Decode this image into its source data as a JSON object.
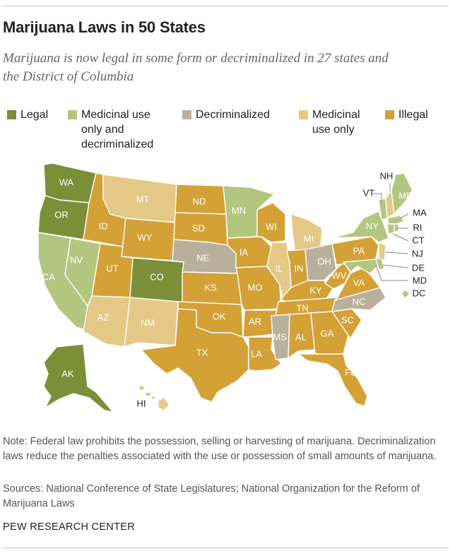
{
  "title": "Marijuana Laws in 50 States",
  "subtitle": "Marijuana is now legal in some form or decriminalized in 27 states and the District of Columbia",
  "legend": [
    {
      "label": "Legal",
      "color": "#7c8f38"
    },
    {
      "label": "Medicinal use\nonly and\ndecriminalized",
      "color": "#b3c67f"
    },
    {
      "label": "Decriminalized",
      "color": "#b9b09b"
    },
    {
      "label": "Medicinal\nuse only",
      "color": "#e4c886"
    },
    {
      "label": "Illegal",
      "color": "#d4a137"
    }
  ],
  "categories": {
    "legal": "#7c8f38",
    "medicinal_decrim": "#b3c67f",
    "decriminalized": "#b9b09b",
    "medicinal": "#e4c886",
    "illegal": "#d4a137"
  },
  "states": {
    "WA": "legal",
    "OR": "legal",
    "CO": "legal",
    "AK": "legal",
    "CA": "medicinal_decrim",
    "NV": "medicinal_decrim",
    "MN": "medicinal_decrim",
    "VT": "medicinal_decrim",
    "ME": "medicinal_decrim",
    "MA": "medicinal_decrim",
    "RI": "medicinal_decrim",
    "CT": "medicinal_decrim",
    "NY": "medicinal_decrim",
    "DE": "medicinal_decrim",
    "MD": "medicinal_decrim",
    "DC": "medicinal_decrim",
    "NE": "decriminalized",
    "MS": "decriminalized",
    "NC": "decriminalized",
    "OH": "decriminalized",
    "MT": "medicinal",
    "AZ": "medicinal",
    "NM": "medicinal",
    "MI": "medicinal",
    "IL": "medicinal",
    "NH": "medicinal",
    "NJ": "medicinal",
    "HI": "medicinal",
    "ID": "illegal",
    "UT": "illegal",
    "WY": "illegal",
    "ND": "illegal",
    "SD": "illegal",
    "KS": "illegal",
    "OK": "illegal",
    "TX": "illegal",
    "IA": "illegal",
    "MO": "illegal",
    "AR": "illegal",
    "LA": "illegal",
    "WI": "illegal",
    "IN": "illegal",
    "KY": "illegal",
    "TN": "illegal",
    "AL": "illegal",
    "GA": "illegal",
    "FL": "illegal",
    "SC": "illegal",
    "WV": "illegal",
    "VA": "illegal",
    "PA": "illegal"
  },
  "note": "Note: Federal law prohibits the possession, selling or harvesting of marijuana. Decriminalization laws reduce the penalties associated with the use or possession of small amounts of marijuana.",
  "sources": "Sources: National Conference of State Legislatures; National Organization for the Reform of Marijuana Laws",
  "footer": "PEW RESEARCH CENTER"
}
